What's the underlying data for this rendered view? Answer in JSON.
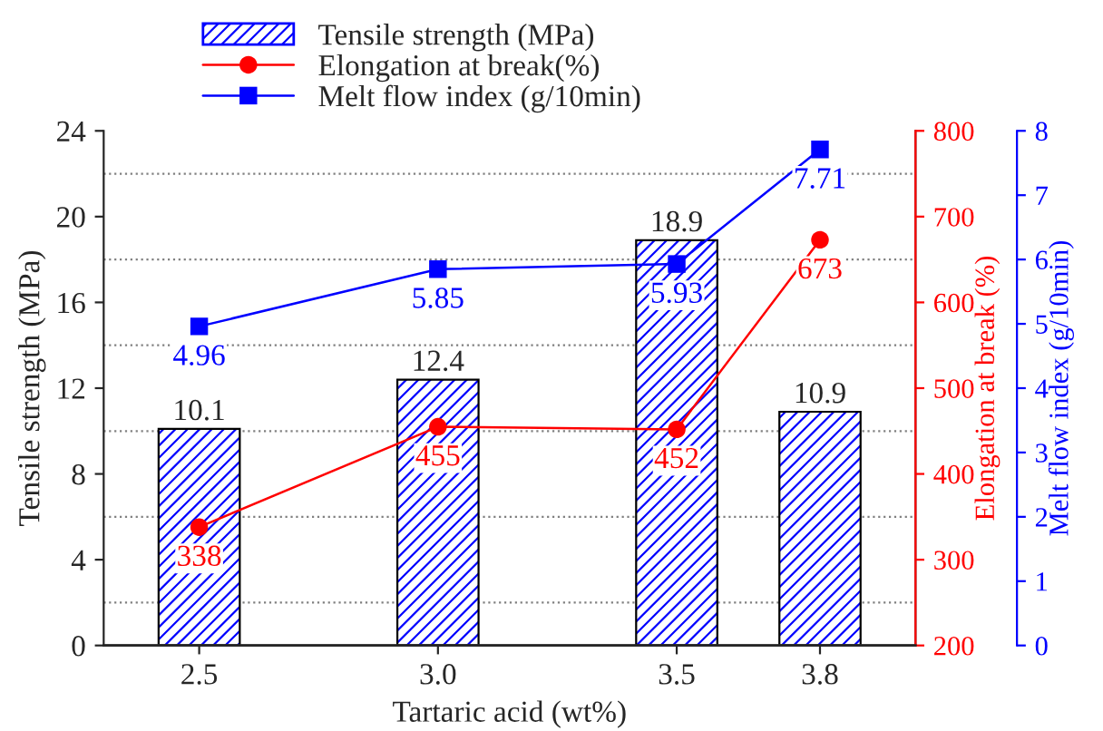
{
  "chart_data": {
    "type": "bar",
    "xlabel": "Tartaric acid (wt%)",
    "ylabel": "Tensile strength (MPa)",
    "y2label": "Elongation at break (%)",
    "y3label": "Melt flow index (g/10min)",
    "x": [
      2.5,
      3.0,
      3.5,
      3.8
    ],
    "xlim": [
      2.3,
      4.0
    ],
    "xticks": [
      2.5,
      {
        "value": 3.0,
        "label": "3.0"
      },
      3.5,
      3.8
    ],
    "ylim": [
      0,
      24
    ],
    "yticks": [
      0,
      4,
      8,
      12,
      16,
      20,
      24
    ],
    "y2lim": [
      200,
      800
    ],
    "y2ticks": [
      200,
      300,
      400,
      500,
      600,
      700,
      800
    ],
    "y3lim": [
      0,
      8
    ],
    "y3ticks": [
      0,
      1,
      2,
      3,
      4,
      5,
      6,
      7,
      8
    ],
    "series": [
      {
        "name": "Tensile strength (MPa)",
        "color": "#0000ff",
        "values": [
          10.1,
          12.4,
          18.9,
          10.9
        ]
      },
      {
        "name": "Elongation at break(%)",
        "type": "line",
        "axis": "y2",
        "marker": "circle",
        "color": "#ff0000",
        "values": [
          338,
          455,
          452,
          673
        ]
      },
      {
        "name": "Melt flow index (g/10min)",
        "type": "line",
        "axis": "y3",
        "marker": "square",
        "color": "#0000ff",
        "values": [
          4.96,
          5.85,
          5.93,
          7.71
        ]
      }
    ],
    "ref_lines": [
      {
        "axis": "y",
        "value": 2,
        "color": "#808080",
        "line_style": "dotted"
      },
      {
        "axis": "y",
        "value": 6,
        "color": "#808080",
        "line_style": "dotted"
      },
      {
        "axis": "y",
        "value": 10,
        "color": "#808080",
        "line_style": "dotted"
      },
      {
        "axis": "y",
        "value": 14,
        "color": "#808080",
        "line_style": "dotted"
      },
      {
        "axis": "y",
        "value": 18,
        "color": "#808080",
        "line_style": "dotted"
      },
      {
        "axis": "y",
        "value": 22,
        "color": "#808080",
        "line_style": "dotted"
      }
    ],
    "data_labels": true,
    "legend": "top left",
    "grid": false
  }
}
